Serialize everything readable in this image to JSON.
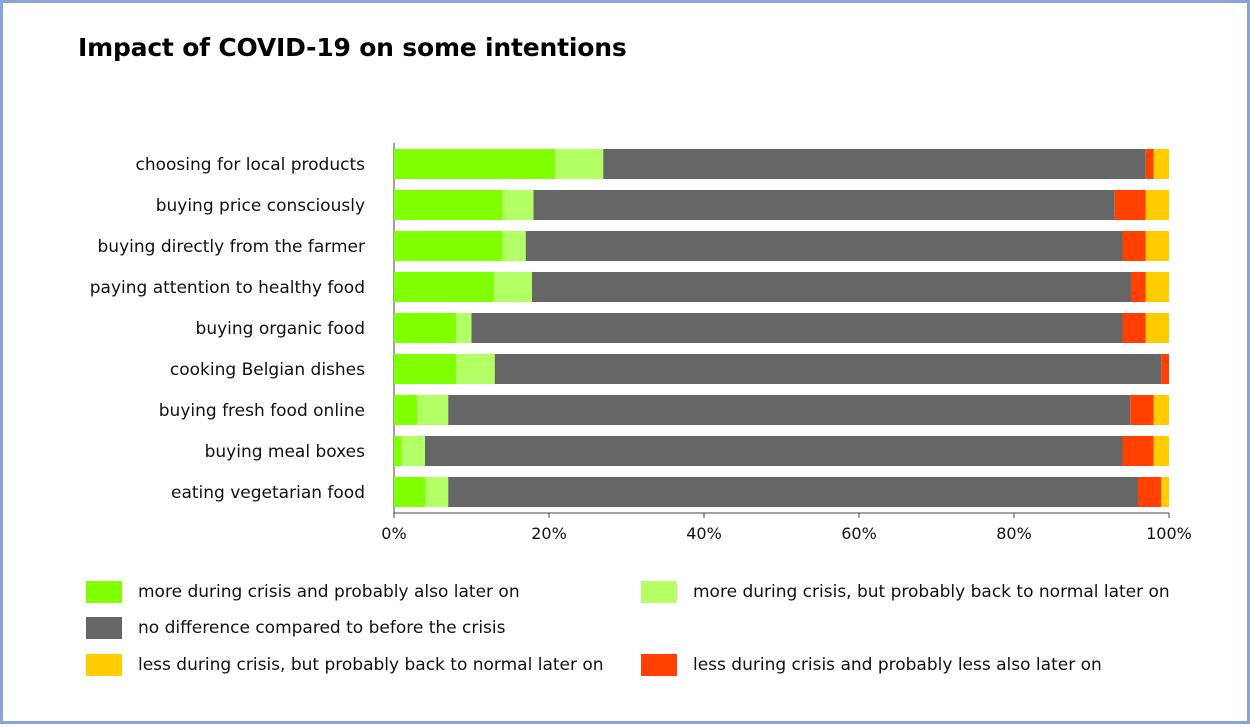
{
  "chart_data": {
    "type": "bar",
    "orientation": "horizontal",
    "stacked": true,
    "percent_stacked": true,
    "title": "Impact of COVID-19 on some intentions",
    "xlabel": "",
    "ylabel": "",
    "xlim": [
      0,
      100
    ],
    "x_ticks": [
      "0%",
      "20%",
      "40%",
      "60%",
      "80%",
      "100%"
    ],
    "grid": false,
    "legend_position": "bottom",
    "categories": [
      "choosing for local products",
      "buying price consciously",
      "buying directly from the farmer",
      "paying attention to healthy food",
      "buying organic food",
      "cooking Belgian dishes",
      "buying fresh food online",
      "buying meal boxes",
      "eating vegetarian food"
    ],
    "series": [
      {
        "name": "more during crisis and probably also later on",
        "color": "#80ff00",
        "values": [
          20.8,
          14.0,
          14.0,
          12.9,
          8.0,
          8.0,
          3.0,
          1.0,
          4.0
        ]
      },
      {
        "name": "more during crisis, but probably back to normal later on",
        "color": "#b3ff66",
        "values": [
          6.2,
          4.0,
          3.0,
          4.9,
          2.0,
          5.0,
          4.0,
          3.0,
          3.0
        ]
      },
      {
        "name": "no difference compared to before the crisis",
        "color": "#666666",
        "values": [
          70.0,
          75.0,
          77.0,
          77.3,
          84.0,
          86.0,
          88.0,
          90.0,
          89.0
        ]
      },
      {
        "name": "less during crisis and probably less also later on",
        "color": "#ff4000",
        "values": [
          1.0,
          4.0,
          3.0,
          1.9,
          3.0,
          1.0,
          3.0,
          4.0,
          3.0
        ]
      },
      {
        "name": "less during crisis, but probably back to normal later on",
        "color": "#ffcc00",
        "values": [
          2.0,
          3.0,
          3.0,
          3.0,
          3.0,
          0.0,
          2.0,
          2.0,
          1.0
        ]
      }
    ]
  },
  "legend_rows": [
    {
      "left": 0,
      "right": 1
    },
    {
      "left": 2,
      "right": null
    },
    {
      "left": 4,
      "right": 3
    }
  ]
}
